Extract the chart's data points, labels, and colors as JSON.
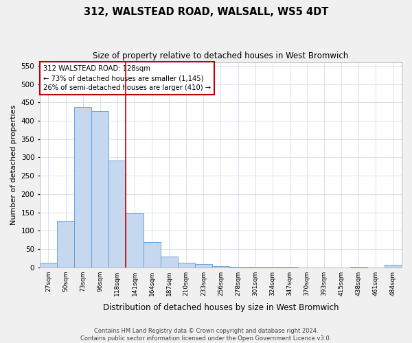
{
  "title": "312, WALSTEAD ROAD, WALSALL, WS5 4DT",
  "subtitle": "Size of property relative to detached houses in West Bromwich",
  "xlabel": "Distribution of detached houses by size in West Bromwich",
  "ylabel": "Number of detached properties",
  "bar_labels": [
    "27sqm",
    "50sqm",
    "73sqm",
    "96sqm",
    "118sqm",
    "141sqm",
    "164sqm",
    "187sqm",
    "210sqm",
    "233sqm",
    "256sqm",
    "278sqm",
    "301sqm",
    "324sqm",
    "347sqm",
    "370sqm",
    "393sqm",
    "415sqm",
    "438sqm",
    "461sqm",
    "484sqm"
  ],
  "bar_values": [
    13,
    127,
    438,
    426,
    291,
    148,
    69,
    29,
    12,
    8,
    4,
    2,
    1,
    1,
    1,
    0,
    0,
    0,
    1,
    0,
    6
  ],
  "bar_color": "#c5d8f0",
  "bar_edge_color": "#5b9bd5",
  "ylim": [
    0,
    560
  ],
  "yticks": [
    0,
    50,
    100,
    150,
    200,
    250,
    300,
    350,
    400,
    450,
    500,
    550
  ],
  "vline_x": 4.5,
  "vline_color": "#c00000",
  "annotation_lines": [
    "312 WALSTEAD ROAD: 128sqm",
    "← 73% of detached houses are smaller (1,145)",
    "26% of semi-detached houses are larger (410) →"
  ],
  "footer_line1": "Contains HM Land Registry data © Crown copyright and database right 2024.",
  "footer_line2": "Contains public sector information licensed under the Open Government Licence v3.0.",
  "background_color": "#f0f0f0",
  "plot_bg_color": "#ffffff",
  "grid_color": "#c8d4e8"
}
